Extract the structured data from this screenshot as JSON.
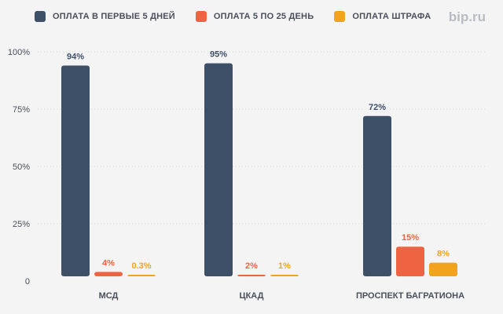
{
  "brand": "bip.ru",
  "colors": {
    "series1": "#3e5068",
    "series2": "#ee6443",
    "series3": "#f2a31d",
    "grid": "#d5d7db",
    "label1": "#3e5068",
    "label2": "#ee6443",
    "label3": "#f2a31d"
  },
  "chart_data": {
    "type": "bar",
    "title": "",
    "xlabel": "",
    "ylabel": "",
    "ylim": [
      0,
      100
    ],
    "yticks": [
      "0",
      "25%",
      "50%",
      "75%",
      "100%"
    ],
    "ytick_values": [
      0,
      25,
      50,
      75,
      100
    ],
    "grid": true,
    "legend_position": "top-left",
    "categories": [
      "МСД",
      "ЦКАД",
      "ПРОСПЕКТ БАГРАТИОНА"
    ],
    "series": [
      {
        "name": "ОПЛАТА В ПЕРВЫЕ 5 ДНЕЙ",
        "values": [
          94,
          95,
          72
        ],
        "labels": [
          "94%",
          "95%",
          "72%"
        ]
      },
      {
        "name": "ОПЛАТА 5 ПО 25 ДЕНЬ",
        "values": [
          4,
          2,
          15
        ],
        "labels": [
          "4%",
          "2%",
          "15%"
        ]
      },
      {
        "name": "ОПЛАТА ШТРАФА",
        "values": [
          0.3,
          1,
          8
        ],
        "labels": [
          "0.3%",
          "1%",
          "8%"
        ]
      }
    ]
  }
}
